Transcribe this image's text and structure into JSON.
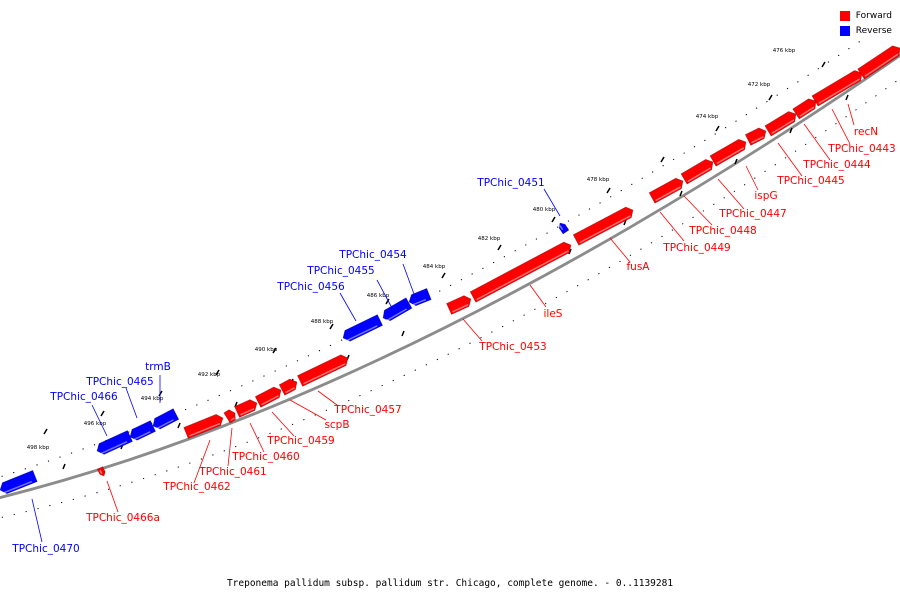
{
  "legend": {
    "forward_label": "Forward",
    "reverse_label": "Reverse",
    "forward_color": "#ff0000",
    "reverse_color": "#0000ff"
  },
  "caption": "Treponema pallidum subsp. pallidum str. Chicago, complete genome. - 0..1139281",
  "scale_labels": [
    "476 kbp",
    "474 kbp",
    "472 kbp",
    "478 kbp",
    "480 kbp",
    "482 kbp",
    "484 kbp",
    "486 kbp",
    "488 kbp",
    "490 kbp",
    "492 kbp",
    "494 kbp",
    "496 kbp",
    "498 kbp"
  ],
  "genes": [
    {
      "name": "recN",
      "strand": "forward"
    },
    {
      "name": "TPChic_0443",
      "strand": "forward"
    },
    {
      "name": "TPChic_0444",
      "strand": "forward"
    },
    {
      "name": "TPChic_0445",
      "strand": "forward"
    },
    {
      "name": "ispG",
      "strand": "forward"
    },
    {
      "name": "TPChic_0447",
      "strand": "forward"
    },
    {
      "name": "TPChic_0448",
      "strand": "forward"
    },
    {
      "name": "TPChic_0449",
      "strand": "forward"
    },
    {
      "name": "fusA",
      "strand": "forward"
    },
    {
      "name": "TPChic_0451",
      "strand": "reverse"
    },
    {
      "name": "ileS",
      "strand": "forward"
    },
    {
      "name": "TPChic_0453",
      "strand": "forward"
    },
    {
      "name": "TPChic_0454",
      "strand": "reverse"
    },
    {
      "name": "TPChic_0455",
      "strand": "reverse"
    },
    {
      "name": "TPChic_0456",
      "strand": "reverse"
    },
    {
      "name": "TPChic_0457",
      "strand": "forward"
    },
    {
      "name": "scpB",
      "strand": "forward"
    },
    {
      "name": "TPChic_0459",
      "strand": "forward"
    },
    {
      "name": "TPChic_0460",
      "strand": "forward"
    },
    {
      "name": "TPChic_0461",
      "strand": "forward"
    },
    {
      "name": "TPChic_0462",
      "strand": "forward"
    },
    {
      "name": "trmB",
      "strand": "reverse"
    },
    {
      "name": "TPChic_0465",
      "strand": "reverse"
    },
    {
      "name": "TPChic_0466",
      "strand": "reverse"
    },
    {
      "name": "TPChic_0466a",
      "strand": "forward"
    },
    {
      "name": "TPChic_0470",
      "strand": "reverse"
    }
  ]
}
